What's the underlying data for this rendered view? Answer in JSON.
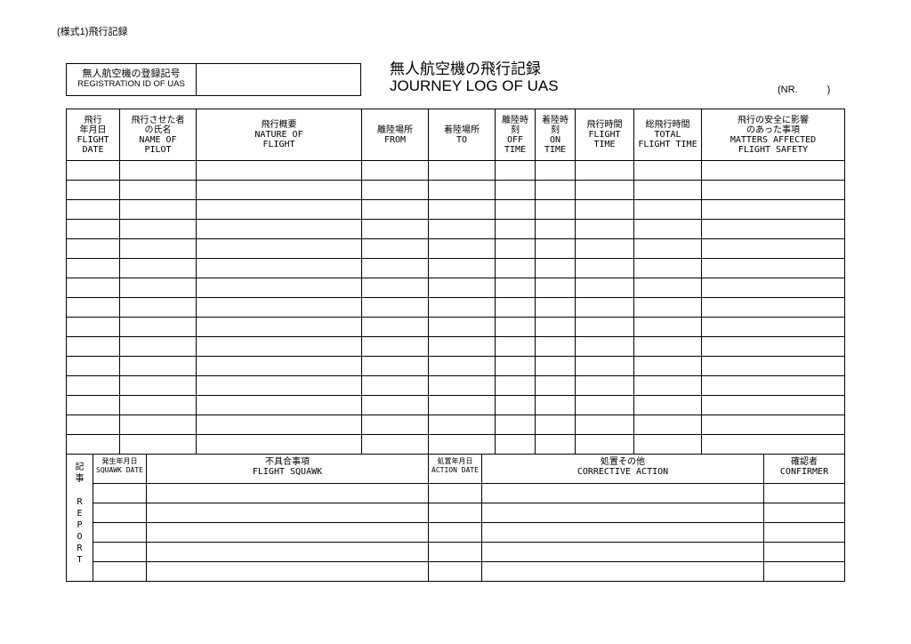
{
  "form_label": "(様式1)飛行記録",
  "registration": {
    "label_ja": "無人航空機の登録記号",
    "label_en": "REGISTRATION ID OF UAS",
    "value": ""
  },
  "title": {
    "ja": "無人航空機の飛行記録",
    "en": "JOURNEY LOG OF UAS"
  },
  "nr": "(NR.　　　)",
  "log_table": {
    "headers": [
      {
        "ja": "飛行\n年月日",
        "en": "FLIGHT\nDATE"
      },
      {
        "ja": "飛行させた者\nの氏名",
        "en": "NAME OF\nPILOT"
      },
      {
        "ja": "飛行概要",
        "en": "NATURE OF\nFLIGHT"
      },
      {
        "ja": "離陸場所",
        "en": "FROM"
      },
      {
        "ja": "着陸場所",
        "en": "TO"
      },
      {
        "ja": "離陸時\n刻",
        "en": "OFF\nTIME"
      },
      {
        "ja": "着陸時\n刻",
        "en": "ON\nTIME"
      },
      {
        "ja": "飛行時間",
        "en": "FLIGHT\nTIME"
      },
      {
        "ja": "総飛行時間",
        "en": "TOTAL\nFLIGHT TIME"
      },
      {
        "ja": "飛行の安全に影響\nのあった事項",
        "en": "MATTERS AFFECTED\nFLIGHT SAFETY"
      }
    ],
    "row_count": 15
  },
  "report_table": {
    "side_label": "記\n事\n\nR\nE\nP\nO\nR\nT",
    "headers": [
      {
        "ja": "発生年月日",
        "en": "SQUAWK DATE",
        "small": true
      },
      {
        "ja": "不具合事項",
        "en": "FLIGHT SQUAWK"
      },
      {
        "ja": "処置年月日",
        "en": "ACTION DATE",
        "small": true
      },
      {
        "ja": "処置その他",
        "en": "CORRECTIVE ACTION"
      },
      {
        "ja": "確認者",
        "en": "CONFIRMER"
      }
    ],
    "row_count": 5
  }
}
